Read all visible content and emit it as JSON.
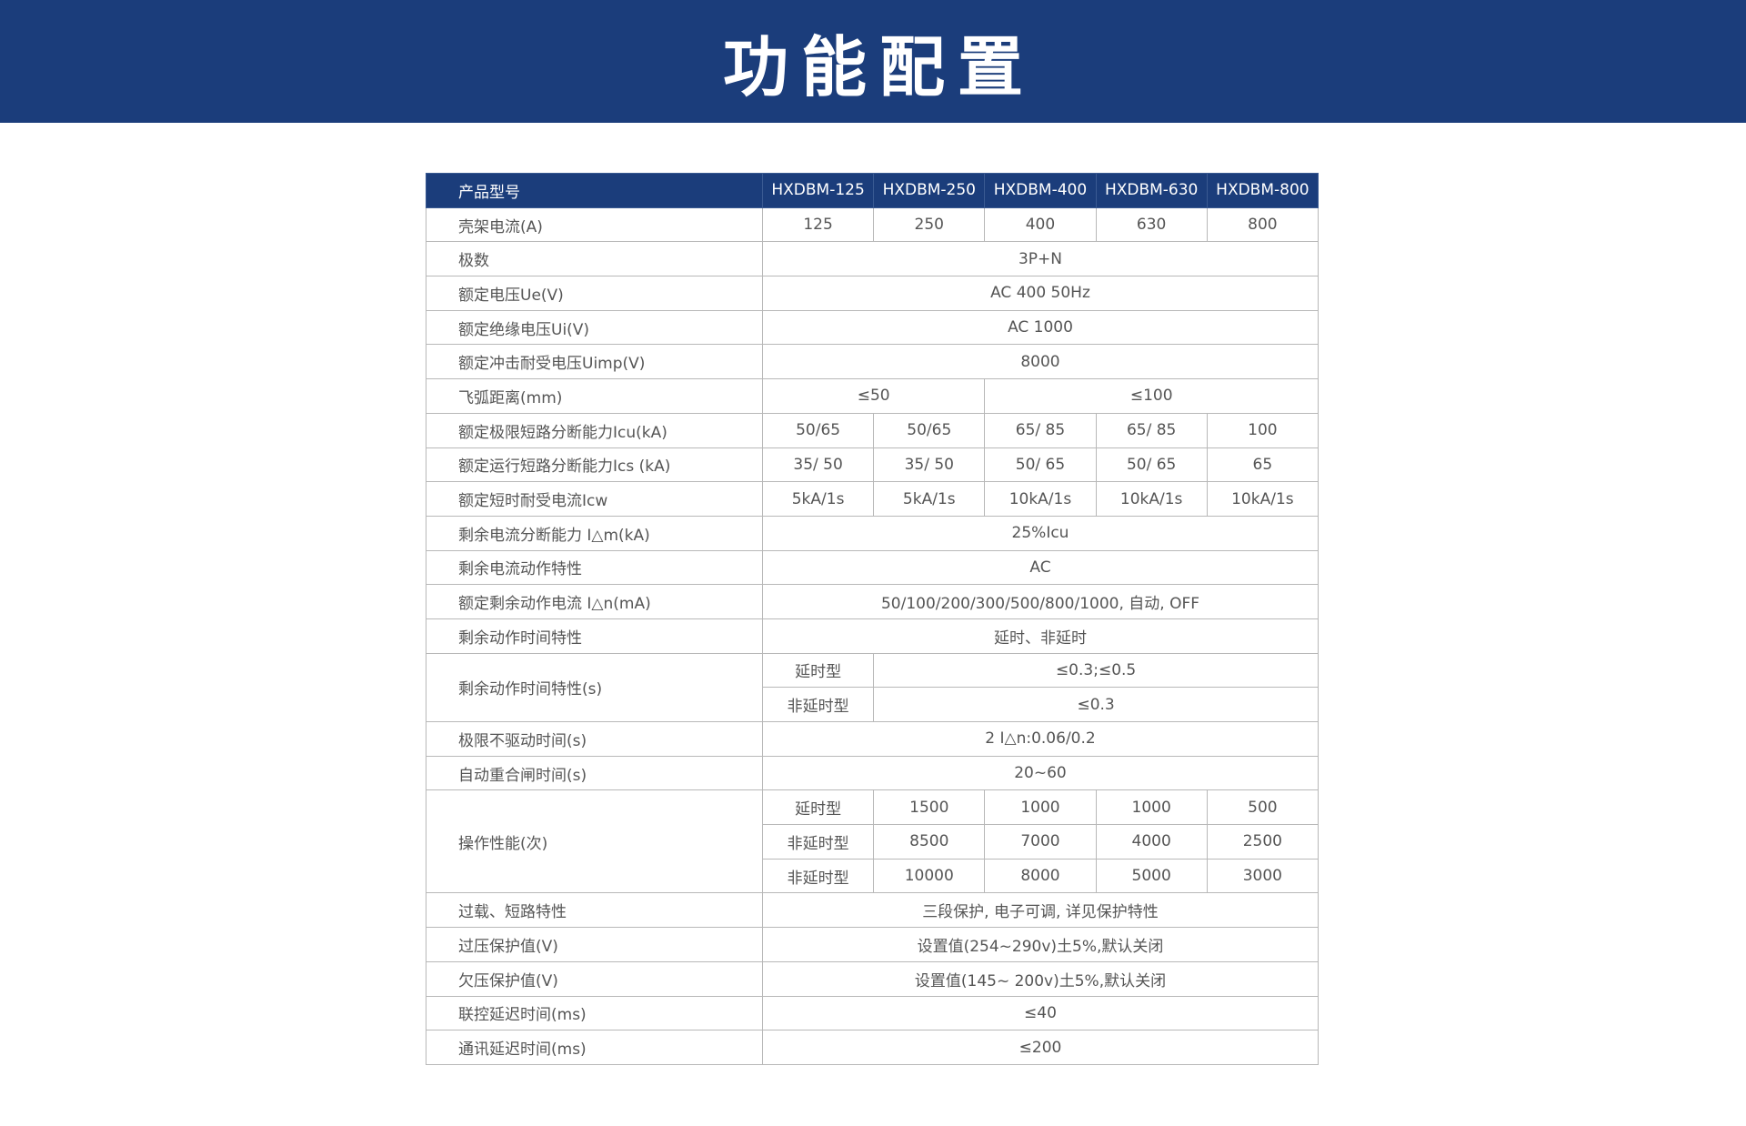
{
  "title": "功能配置",
  "colors": {
    "banner": "#1b3d7b",
    "table_header": "#1b3d7b",
    "text": "#555555",
    "border": "#b8b8b8"
  },
  "table": {
    "header": {
      "label": "产品型号",
      "models": [
        "HXDBM-125",
        "HXDBM-250",
        "HXDBM-400",
        "HXDBM-630",
        "HXDBM-800"
      ]
    },
    "rows": [
      {
        "label": "壳架电流(A)",
        "cells": [
          {
            "v": "125",
            "span": 1
          },
          {
            "v": "250",
            "span": 1
          },
          {
            "v": "400",
            "span": 1
          },
          {
            "v": "630",
            "span": 1
          },
          {
            "v": "800",
            "span": 1
          }
        ]
      },
      {
        "label": "极数",
        "cells": [
          {
            "v": "3P+N",
            "span": 5
          }
        ]
      },
      {
        "label": "额定电压Ue(V)",
        "cells": [
          {
            "v": "AC 400 50Hz",
            "span": 5
          }
        ]
      },
      {
        "label": "额定绝缘电压Ui(V)",
        "cells": [
          {
            "v": "AC 1000",
            "span": 5
          }
        ]
      },
      {
        "label": "额定冲击耐受电压Uimp(V)",
        "cells": [
          {
            "v": "8000",
            "span": 5
          }
        ]
      },
      {
        "label": "飞弧距离(mm)",
        "cells": [
          {
            "v": "≤50",
            "span": 2
          },
          {
            "v": "≤100",
            "span": 3
          }
        ]
      },
      {
        "label": "额定极限短路分断能力Icu(kA)",
        "cells": [
          {
            "v": "50/65",
            "span": 1
          },
          {
            "v": "50/65",
            "span": 1
          },
          {
            "v": "65/ 85",
            "span": 1
          },
          {
            "v": "65/ 85",
            "span": 1
          },
          {
            "v": "100",
            "span": 1
          }
        ]
      },
      {
        "label": "额定运行短路分断能力Ics (kA)",
        "cells": [
          {
            "v": "35/ 50",
            "span": 1
          },
          {
            "v": "35/ 50",
            "span": 1
          },
          {
            "v": "50/ 65",
            "span": 1
          },
          {
            "v": "50/ 65",
            "span": 1
          },
          {
            "v": "65",
            "span": 1
          }
        ]
      },
      {
        "label": "额定短时耐受电流Icw",
        "cells": [
          {
            "v": "5kA/1s",
            "span": 1
          },
          {
            "v": "5kA/1s",
            "span": 1
          },
          {
            "v": "10kA/1s",
            "span": 1
          },
          {
            "v": "10kA/1s",
            "span": 1
          },
          {
            "v": "10kA/1s",
            "span": 1
          }
        ]
      },
      {
        "label": "剩余电流分断能力 I△m(kA)",
        "cells": [
          {
            "v": "25%Icu",
            "span": 5
          }
        ]
      },
      {
        "label": "剩余电流动作特性",
        "cells": [
          {
            "v": "AC",
            "span": 5
          }
        ]
      },
      {
        "label": "额定剩余动作电流 I△n(mA)",
        "cells": [
          {
            "v": "50/100/200/300/500/800/1000, 自动, OFF",
            "span": 5
          }
        ]
      },
      {
        "label": "剩余动作时间特性",
        "cells": [
          {
            "v": "延时、非延时",
            "span": 5
          }
        ]
      },
      {
        "label": "剩余动作时间特性(s)",
        "sub": [
          {
            "cells": [
              {
                "v": "延时型",
                "span": 1
              },
              {
                "v": "≤0.3;≤0.5",
                "span": 4
              }
            ]
          },
          {
            "cells": [
              {
                "v": "非延时型",
                "span": 1
              },
              {
                "v": "≤0.3",
                "span": 4
              }
            ]
          }
        ]
      },
      {
        "label": "极限不驱动时间(s)",
        "cells": [
          {
            "v": "2 I△n:0.06/0.2",
            "span": 5
          }
        ]
      },
      {
        "label": "自动重合闸时间(s)",
        "cells": [
          {
            "v": "20~60",
            "span": 5
          }
        ]
      },
      {
        "label": "操作性能(次)",
        "sub": [
          {
            "cells": [
              {
                "v": "延时型",
                "span": 1
              },
              {
                "v": "1500",
                "span": 1
              },
              {
                "v": "1000",
                "span": 1
              },
              {
                "v": "1000",
                "span": 1
              },
              {
                "v": "500",
                "span": 1
              }
            ]
          },
          {
            "cells": [
              {
                "v": "非延时型",
                "span": 1
              },
              {
                "v": "8500",
                "span": 1
              },
              {
                "v": "7000",
                "span": 1
              },
              {
                "v": "4000",
                "span": 1
              },
              {
                "v": "2500",
                "span": 1
              }
            ]
          },
          {
            "cells": [
              {
                "v": "非延时型",
                "span": 1
              },
              {
                "v": "10000",
                "span": 1
              },
              {
                "v": "8000",
                "span": 1
              },
              {
                "v": "5000",
                "span": 1
              },
              {
                "v": "3000",
                "span": 1
              }
            ]
          }
        ]
      },
      {
        "label": "过载、短路特性",
        "cells": [
          {
            "v": "三段保护, 电子可调, 详见保护特性",
            "span": 5
          }
        ]
      },
      {
        "label": "过压保护值(V)",
        "cells": [
          {
            "v": "设置值(254~290v)土5%,默认关闭",
            "span": 5
          }
        ]
      },
      {
        "label": "欠压保护值(V)",
        "cells": [
          {
            "v": "设置值(145~ 200v)土5%,默认关闭",
            "span": 5
          }
        ]
      },
      {
        "label": "联控延迟时间(ms)",
        "cells": [
          {
            "v": "≤40",
            "span": 5
          }
        ]
      },
      {
        "label": "通讯延迟时间(ms)",
        "cells": [
          {
            "v": "≤200",
            "span": 5
          }
        ]
      }
    ]
  }
}
